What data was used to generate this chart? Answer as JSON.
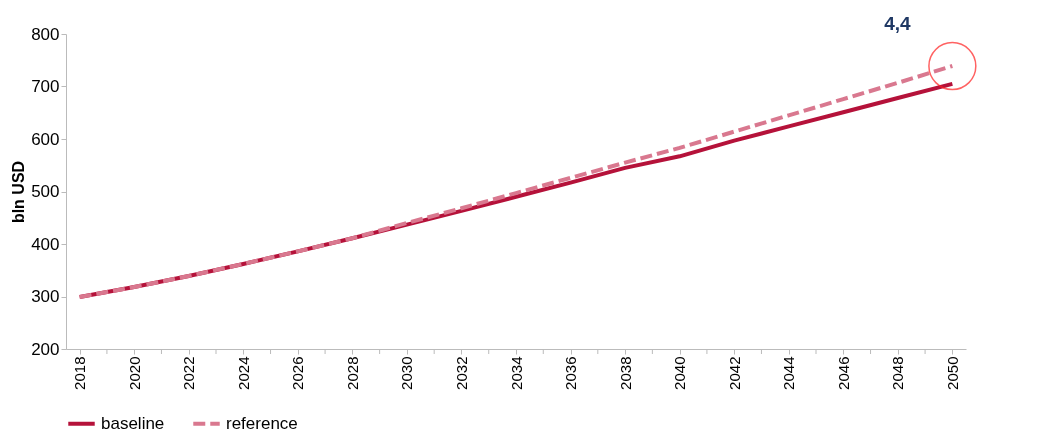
{
  "chart_data": {
    "type": "line",
    "ylabel": "bln USD",
    "x": [
      2018,
      2020,
      2022,
      2024,
      2026,
      2028,
      2030,
      2032,
      2034,
      2036,
      2038,
      2040,
      2042,
      2044,
      2046,
      2048,
      2050
    ],
    "series": [
      {
        "name": "baseline",
        "color": "#b5123a",
        "line_style": "solid",
        "values": [
          299,
          318,
          339,
          362,
          386,
          411,
          437,
          463,
          490,
          517,
          545,
          567,
          597,
          624,
          651,
          678,
          705
        ]
      },
      {
        "name": "reference",
        "color": "#d9788f",
        "line_style": "dashed",
        "values": [
          299,
          318,
          339,
          362,
          386,
          411,
          440,
          468,
          497,
          526,
          555,
          583,
          614,
          645,
          676,
          707,
          739
        ]
      }
    ],
    "xlim": [
      2017.5,
      2050.5
    ],
    "xticks": [
      2018,
      {
        "value": 2019,
        "label": null
      },
      2020,
      {
        "value": 2021,
        "label": null
      },
      2022,
      {
        "value": 2023,
        "label": null
      },
      2024,
      {
        "value": 2025,
        "label": null
      },
      2026,
      {
        "value": 2027,
        "label": null
      },
      2028,
      {
        "value": 2029,
        "label": null
      },
      2030,
      {
        "value": 2031,
        "label": null
      },
      2032,
      {
        "value": 2033,
        "label": null
      },
      2034,
      {
        "value": 2035,
        "label": null
      },
      2036,
      {
        "value": 2037,
        "label": null
      },
      2038,
      {
        "value": 2039,
        "label": null
      },
      2040,
      {
        "value": 2041,
        "label": null
      },
      2042,
      {
        "value": 2043,
        "label": null
      },
      2044,
      {
        "value": 2045,
        "label": null
      },
      2046,
      {
        "value": 2047,
        "label": null
      },
      2048,
      {
        "value": 2049,
        "label": null
      },
      2050
    ],
    "ylim": [
      200,
      800
    ],
    "yticks": [
      200,
      300,
      400,
      500,
      600,
      700,
      800
    ],
    "annotations": [
      {
        "text": "4,4",
        "x": 2050,
        "y": 739
      }
    ],
    "grid": false,
    "legend": "bottom",
    "marker": "none"
  }
}
